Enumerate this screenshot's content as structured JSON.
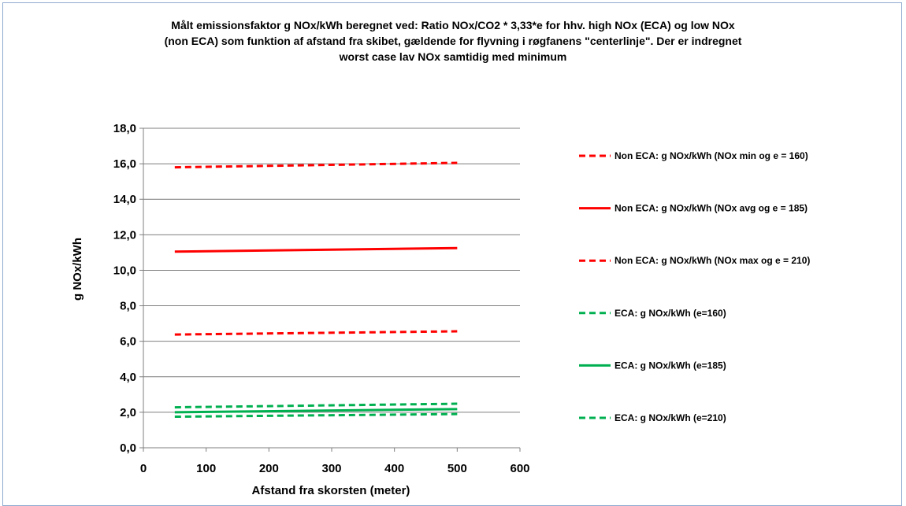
{
  "chart_data": {
    "type": "line",
    "title_lines": [
      "Målt emissionsfaktor g NOx/kWh beregnet ved: Ratio NOx/CO2 * 3,33*e for hhv. high NOx (ECA) og low NOx",
      "(non ECA) som funktion af afstand fra skibet, gældende for flyvning i røgfanens \"centerlinje\". Der er indregnet",
      "worst case lav NOx samtidig med minimum"
    ],
    "xlabel": "Afstand fra skorsten (meter)",
    "ylabel": "g NOx/kWh",
    "xlim": [
      0,
      600
    ],
    "ylim": [
      0,
      18
    ],
    "xticks": [
      "0",
      "100",
      "200",
      "300",
      "400",
      "500",
      "600"
    ],
    "yticks": [
      "0,0",
      "2,0",
      "4,0",
      "6,0",
      "8,0",
      "10,0",
      "12,0",
      "14,0",
      "16,0",
      "18,0"
    ],
    "grid": "horizontal",
    "legend_position": "right",
    "series": [
      {
        "name": "Non ECA: g NOx/kWh (NOx min og e = 160)",
        "color": "#ff0000",
        "dash": "dashed",
        "x": [
          50,
          500
        ],
        "y": [
          15.8,
          16.05
        ]
      },
      {
        "name": "Non ECA: g NOx/kWh (NOx avg og e = 185)",
        "color": "#ff0000",
        "dash": "solid",
        "x": [
          50,
          500
        ],
        "y": [
          11.05,
          11.25
        ]
      },
      {
        "name": "Non ECA: g NOx/kWh (NOx max og e = 210)",
        "color": "#ff0000",
        "dash": "dashed",
        "x": [
          50,
          500
        ],
        "y": [
          6.38,
          6.56
        ]
      },
      {
        "name": "ECA: g NOx/kWh (e=160)",
        "color": "#00b050",
        "dash": "dashed",
        "x": [
          50,
          500
        ],
        "y": [
          2.28,
          2.48
        ]
      },
      {
        "name": "ECA: g NOx/kWh (e=185)",
        "color": "#00b050",
        "dash": "solid",
        "x": [
          50,
          500
        ],
        "y": [
          2.0,
          2.18
        ]
      },
      {
        "name": "ECA: g NOx/kWh (e=210)",
        "color": "#00b050",
        "dash": "dashed",
        "x": [
          50,
          500
        ],
        "y": [
          1.75,
          1.9
        ]
      }
    ]
  }
}
